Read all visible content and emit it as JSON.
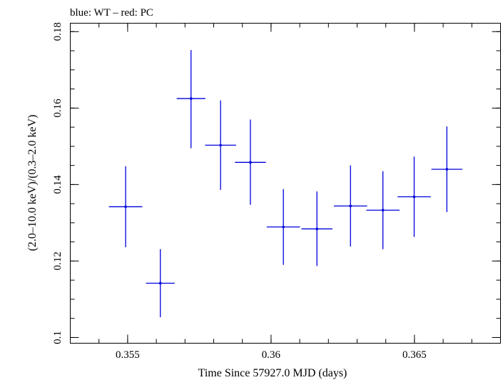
{
  "chart_data": {
    "type": "scatter",
    "title": "blue: WT – red: PC",
    "xlabel": "Time Since 57927.0 MJD (days)",
    "ylabel": "(2.0–10.0 keV)/(0.3–2.0 keV)",
    "xlim": [
      0.353,
      0.368
    ],
    "ylim": [
      0.0985,
      0.1822
    ],
    "x_ticks": [
      {
        "value": 0.355,
        "label": "0.355"
      },
      {
        "value": 0.36,
        "label": "0.36"
      },
      {
        "value": 0.365,
        "label": "0.365"
      }
    ],
    "y_ticks": [
      {
        "value": 0.1,
        "label": "0.1"
      },
      {
        "value": 0.12,
        "label": "0.12"
      },
      {
        "value": 0.14,
        "label": "0.14"
      },
      {
        "value": 0.16,
        "label": "0.16"
      },
      {
        "value": 0.18,
        "label": "0.18"
      }
    ],
    "x_minor_step": 0.001,
    "y_minor_step": 0.005,
    "grid": false,
    "series": [
      {
        "name": "WT",
        "color": "#0000dd",
        "points": [
          {
            "x": 0.35493,
            "xerr": 0.00058,
            "y": 0.1342,
            "yerr_lo": 0.0106,
            "yerr_hi": 0.0106
          },
          {
            "x": 0.35614,
            "xerr": 0.0005,
            "y": 0.1142,
            "yerr_lo": 0.0089,
            "yerr_hi": 0.0089
          },
          {
            "x": 0.35721,
            "xerr": 0.0005,
            "y": 0.1625,
            "yerr_lo": 0.013,
            "yerr_hi": 0.0127
          },
          {
            "x": 0.35824,
            "xerr": 0.00054,
            "y": 0.1503,
            "yerr_lo": 0.0117,
            "yerr_hi": 0.0117
          },
          {
            "x": 0.35928,
            "xerr": 0.00054,
            "y": 0.1458,
            "yerr_lo": 0.0111,
            "yerr_hi": 0.0112
          },
          {
            "x": 0.36043,
            "xerr": 0.00058,
            "y": 0.1289,
            "yerr_lo": 0.0099,
            "yerr_hi": 0.0099
          },
          {
            "x": 0.3616,
            "xerr": 0.00054,
            "y": 0.1284,
            "yerr_lo": 0.0097,
            "yerr_hi": 0.0098
          },
          {
            "x": 0.36277,
            "xerr": 0.00058,
            "y": 0.1344,
            "yerr_lo": 0.0106,
            "yerr_hi": 0.0106
          },
          {
            "x": 0.3639,
            "xerr": 0.00058,
            "y": 0.1333,
            "yerr_lo": 0.0102,
            "yerr_hi": 0.0102
          },
          {
            "x": 0.36499,
            "xerr": 0.00058,
            "y": 0.1368,
            "yerr_lo": 0.0105,
            "yerr_hi": 0.0105
          },
          {
            "x": 0.36613,
            "xerr": 0.00054,
            "y": 0.144,
            "yerr_lo": 0.0112,
            "yerr_hi": 0.0112
          }
        ]
      }
    ]
  }
}
